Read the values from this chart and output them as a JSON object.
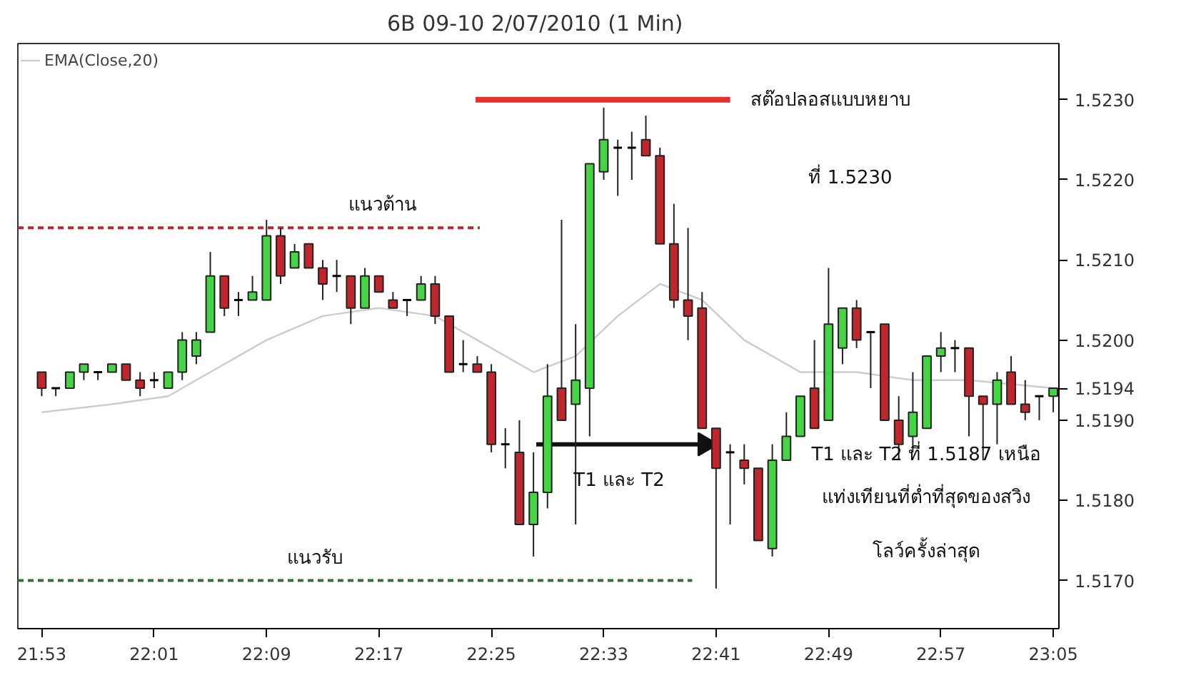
{
  "chart_data": {
    "type": "candlestick",
    "title": "6B 09-10  2/07/2010 (1 Min)",
    "x": [
      21.8833,
      21.9,
      21.9167,
      21.9333,
      21.95,
      21.9667,
      21.9833,
      22.0,
      22.0167,
      22.0333,
      22.05,
      22.0667,
      22.0833,
      22.1,
      22.1167,
      22.1333,
      22.15,
      22.1667,
      22.1833,
      22.2,
      22.2167,
      22.2333,
      22.25,
      22.2667,
      22.2833,
      22.3,
      22.3167,
      22.3333,
      22.35,
      22.3667,
      22.3833,
      22.4,
      22.4167,
      22.4333,
      22.45,
      22.4667,
      22.4833,
      22.5,
      22.5167,
      22.5333,
      22.55,
      22.5667,
      22.5833,
      22.6,
      22.6167,
      22.6333,
      22.65,
      22.6667,
      22.6833,
      22.7,
      22.7167,
      22.7333,
      22.75,
      22.7667,
      22.7833,
      22.8,
      22.8167,
      22.8333,
      22.85,
      22.8667,
      22.8833,
      22.9,
      22.9167,
      22.9333,
      22.95,
      22.9667,
      22.9833,
      23.0,
      23.0167,
      23.0333,
      23.05,
      23.0667,
      23.0833
    ],
    "ohlc": [
      [
        1.5196,
        1.5196,
        1.5193,
        1.5194
      ],
      [
        1.5194,
        1.5194,
        1.5193,
        1.5194
      ],
      [
        1.5194,
        1.5196,
        1.5194,
        1.5196
      ],
      [
        1.5196,
        1.5197,
        1.5195,
        1.5197
      ],
      [
        1.5196,
        1.5196,
        1.5195,
        1.5196
      ],
      [
        1.5196,
        1.5197,
        1.5196,
        1.5197
      ],
      [
        1.5197,
        1.5197,
        1.5195,
        1.5195
      ],
      [
        1.5195,
        1.5196,
        1.5193,
        1.5194
      ],
      [
        1.5195,
        1.5196,
        1.5194,
        1.5195
      ],
      [
        1.5194,
        1.5196,
        1.5194,
        1.5196
      ],
      [
        1.5196,
        1.5201,
        1.5195,
        1.52
      ],
      [
        1.5198,
        1.5201,
        1.5197,
        1.52
      ],
      [
        1.5201,
        1.5211,
        1.5201,
        1.5208
      ],
      [
        1.5208,
        1.5208,
        1.5203,
        1.5204
      ],
      [
        1.5205,
        1.5206,
        1.5203,
        1.5205
      ],
      [
        1.5205,
        1.5208,
        1.5205,
        1.5206
      ],
      [
        1.5205,
        1.5215,
        1.5205,
        1.5213
      ],
      [
        1.5213,
        1.5214,
        1.5207,
        1.5208
      ],
      [
        1.5209,
        1.5212,
        1.5209,
        1.5211
      ],
      [
        1.5212,
        1.5212,
        1.5209,
        1.5209
      ],
      [
        1.5209,
        1.521,
        1.5205,
        1.5207
      ],
      [
        1.5208,
        1.521,
        1.5206,
        1.5208
      ],
      [
        1.5208,
        1.5208,
        1.5202,
        1.5204
      ],
      [
        1.5204,
        1.5209,
        1.5204,
        1.5208
      ],
      [
        1.5208,
        1.5208,
        1.5206,
        1.5206
      ],
      [
        1.5205,
        1.5206,
        1.5204,
        1.5204
      ],
      [
        1.5205,
        1.5205,
        1.5203,
        1.5205
      ],
      [
        1.5205,
        1.5208,
        1.5205,
        1.5207
      ],
      [
        1.5207,
        1.5208,
        1.5202,
        1.5203
      ],
      [
        1.5203,
        1.5203,
        1.5196,
        1.5196
      ],
      [
        1.5197,
        1.52,
        1.5196,
        1.5197
      ],
      [
        1.5197,
        1.5198,
        1.5196,
        1.5196
      ],
      [
        1.5196,
        1.5197,
        1.5186,
        1.5187
      ],
      [
        1.5187,
        1.5189,
        1.5184,
        1.5187
      ],
      [
        1.5186,
        1.519,
        1.5177,
        1.5177
      ],
      [
        1.5177,
        1.5186,
        1.5173,
        1.5181
      ],
      [
        1.5181,
        1.5197,
        1.5179,
        1.5193
      ],
      [
        1.5194,
        1.5215,
        1.519,
        1.519
      ],
      [
        1.5192,
        1.5202,
        1.5177,
        1.5195
      ],
      [
        1.5194,
        1.5222,
        1.5188,
        1.5222
      ],
      [
        1.5221,
        1.5229,
        1.522,
        1.5225
      ],
      [
        1.5224,
        1.5225,
        1.5218,
        1.5224
      ],
      [
        1.5224,
        1.5226,
        1.522,
        1.5224
      ],
      [
        1.5225,
        1.5228,
        1.5223,
        1.5223
      ],
      [
        1.5223,
        1.5224,
        1.5212,
        1.5212
      ],
      [
        1.5212,
        1.5217,
        1.5204,
        1.5205
      ],
      [
        1.5205,
        1.5214,
        1.52,
        1.5203
      ],
      [
        1.5204,
        1.5206,
        1.5189,
        1.5189
      ],
      [
        1.5189,
        1.5189,
        1.5169,
        1.5184
      ],
      [
        1.5186,
        1.5187,
        1.5177,
        1.5186
      ],
      [
        1.5185,
        1.5187,
        1.5182,
        1.5184
      ],
      [
        1.5184,
        1.5184,
        1.5175,
        1.5175
      ],
      [
        1.5174,
        1.5187,
        1.5173,
        1.5185
      ],
      [
        1.5185,
        1.5191,
        1.5185,
        1.5188
      ],
      [
        1.5188,
        1.5193,
        1.5188,
        1.5193
      ],
      [
        1.5194,
        1.52,
        1.5189,
        1.5189
      ],
      [
        1.519,
        1.5209,
        1.519,
        1.5202
      ],
      [
        1.5199,
        1.5204,
        1.5197,
        1.5204
      ],
      [
        1.5204,
        1.5205,
        1.5199,
        1.52
      ],
      [
        1.5201,
        1.5201,
        1.5194,
        1.5201
      ],
      [
        1.5202,
        1.5202,
        1.519,
        1.519
      ],
      [
        1.519,
        1.5193,
        1.5185,
        1.5187
      ],
      [
        1.5188,
        1.5196,
        1.5186,
        1.5191
      ],
      [
        1.5189,
        1.5198,
        1.5189,
        1.5198
      ],
      [
        1.5198,
        1.5201,
        1.5196,
        1.5199
      ],
      [
        1.5199,
        1.52,
        1.5196,
        1.5199
      ],
      [
        1.5199,
        1.5199,
        1.5188,
        1.5193
      ],
      [
        1.5193,
        1.5193,
        1.5185,
        1.5192
      ],
      [
        1.5192,
        1.5196,
        1.5187,
        1.5195
      ],
      [
        1.5196,
        1.5198,
        1.5192,
        1.5192
      ],
      [
        1.5192,
        1.5195,
        1.519,
        1.5191
      ],
      [
        1.5193,
        1.5193,
        1.519,
        1.5193
      ],
      [
        1.5193,
        1.5194,
        1.5191,
        1.5194
      ]
    ],
    "colors": [
      "#c0272d",
      "#000000",
      "#44d444",
      "#44d444",
      "#000000",
      "#44d444",
      "#c0272d",
      "#c0272d",
      "#000000",
      "#44d444",
      "#44d444",
      "#44d444",
      "#44d444",
      "#c0272d",
      "#000000",
      "#44d444",
      "#44d444",
      "#c0272d",
      "#44d444",
      "#c0272d",
      "#c0272d",
      "#000000",
      "#c0272d",
      "#44d444",
      "#c0272d",
      "#c0272d",
      "#000000",
      "#44d444",
      "#c0272d",
      "#c0272d",
      "#000000",
      "#c0272d",
      "#c0272d",
      "#000000",
      "#c0272d",
      "#44d444",
      "#44d444",
      "#c0272d",
      "#44d444",
      "#44d444",
      "#44d444",
      "#000000",
      "#000000",
      "#c0272d",
      "#c0272d",
      "#c0272d",
      "#c0272d",
      "#c0272d",
      "#c0272d",
      "#000000",
      "#c0272d",
      "#c0272d",
      "#44d444",
      "#44d444",
      "#44d444",
      "#c0272d",
      "#44d444",
      "#44d444",
      "#c0272d",
      "#000000",
      "#c0272d",
      "#c0272d",
      "#44d444",
      "#44d444",
      "#44d444",
      "#000000",
      "#c0272d",
      "#c0272d",
      "#44d444",
      "#c0272d",
      "#c0272d",
      "#000000",
      "#44d444"
    ],
    "series": [
      {
        "type": "line",
        "name": "EMA(Close,20)",
        "color": "#cccccc",
        "x": [
          21.8833,
          21.9667,
          22.0333,
          22.0833,
          22.15,
          22.2167,
          22.2833,
          22.35,
          22.4167,
          22.4667,
          22.5167,
          22.5667,
          22.6167,
          22.6667,
          22.7167,
          22.7833,
          22.85,
          22.9167,
          22.9833,
          23.0833
        ],
        "values": [
          1.5191,
          1.5192,
          1.5193,
          1.5196,
          1.52,
          1.5203,
          1.5204,
          1.5203,
          1.5199,
          1.5196,
          1.5198,
          1.5203,
          1.5207,
          1.5205,
          1.52,
          1.5196,
          1.5196,
          1.5195,
          1.5195,
          1.5194
        ]
      },
      {
        "type": "line",
        "name": "แนวต้าน",
        "color": "#c0272d",
        "line_style": "dashed",
        "x": [
          21.855,
          22.403
        ],
        "values": [
          1.5214,
          1.5214
        ]
      },
      {
        "type": "line",
        "name": "แนวรับ",
        "color": "#3a6e3a",
        "line_style": "dashed",
        "x": [
          21.855,
          22.655
        ],
        "values": [
          1.517,
          1.517
        ]
      },
      {
        "type": "line",
        "name": "สต๊อปลอสแบบหยาบ",
        "color": "#e03030",
        "line_style": "solid",
        "x": [
          22.398,
          22.7
        ],
        "values": [
          1.523,
          1.523
        ]
      },
      {
        "type": "line",
        "color": "#111111",
        "line_style": "solid",
        "marker": "triangle",
        "x": [
          22.47,
          22.67
        ],
        "values": [
          1.5187,
          1.5187
        ]
      }
    ],
    "annotations": [
      "T1 และ T2",
      "ที่ 1.5230",
      "T1 และ T2 ที่ 1.5187 เหนือ",
      "แท่งเทียนที่ต่ำที่สุดของสวิง",
      "โลว์ครั้งล่าสุด"
    ],
    "xlim": [
      21.855,
      23.09
    ],
    "ylim": [
      1.5164,
      1.5237
    ],
    "xticks": [
      {
        "value": 21.8833,
        "label": "21:53"
      },
      {
        "value": 22.0167,
        "label": "22:01"
      },
      {
        "value": 22.15,
        "label": "22:09"
      },
      {
        "value": 22.2833,
        "label": "22:17"
      },
      {
        "value": 22.4167,
        "label": "22:25"
      },
      {
        "value": 22.55,
        "label": "22:33"
      },
      {
        "value": 22.6833,
        "label": "22:41"
      },
      {
        "value": 22.8167,
        "label": "22:49"
      },
      {
        "value": 22.95,
        "label": "22:57"
      },
      {
        "value": 23.0833,
        "label": "23:05"
      }
    ],
    "yticks": [
      {
        "value": 1.517,
        "label": "1.5170"
      },
      {
        "value": 1.518,
        "label": "1.5180"
      },
      {
        "value": 1.519,
        "label": "1.5190"
      },
      {
        "value": 1.52,
        "label": "1.5200"
      },
      {
        "value": 1.521,
        "label": "1.5210"
      },
      {
        "value": 1.522,
        "label": "1.5220"
      },
      {
        "value": 1.523,
        "label": "1.5230"
      },
      {
        "value": 1.5194,
        "label": "1.5194"
      }
    ],
    "legend": "top left",
    "grid": false
  }
}
